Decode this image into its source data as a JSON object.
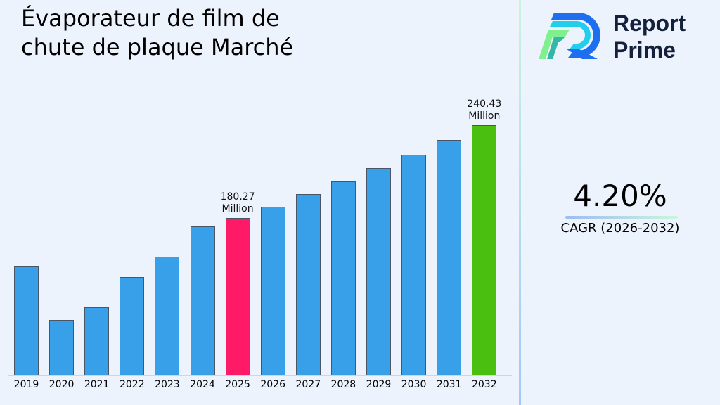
{
  "title": "Évaporateur de film de chute de plaque Marché",
  "brand": {
    "line1": "Report",
    "line2": "Prime"
  },
  "cagr": {
    "value": "4.20%",
    "label": "CAGR (2026-2032)"
  },
  "colors": {
    "default_bar": "#38a0e8",
    "highlight_bar": "#fe1a66",
    "final_bar": "#4bbf10"
  },
  "annotations": [
    {
      "year": "2025",
      "line1": "180.27",
      "line2": "Million"
    },
    {
      "year": "2032",
      "line1": "240.43",
      "line2": "Million"
    }
  ],
  "chart_data": {
    "type": "bar",
    "title": "Évaporateur de film de chute de plaque Marché",
    "xlabel": "",
    "ylabel": "",
    "unit": "Million",
    "categories": [
      "2019",
      "2020",
      "2021",
      "2022",
      "2023",
      "2024",
      "2025",
      "2026",
      "2027",
      "2028",
      "2029",
      "2030",
      "2031",
      "2032"
    ],
    "values": [
      148.8,
      114.2,
      122.4,
      142.0,
      155.2,
      174.8,
      180.27,
      187.8,
      195.7,
      203.9,
      212.5,
      221.4,
      230.7,
      240.43
    ],
    "highlight": {
      "2025": "#fe1a66",
      "2032": "#4bbf10"
    },
    "data_labels": {
      "2025": "180.27 Million",
      "2032": "240.43 Million"
    },
    "cagr": "4.20%",
    "cagr_period": "2026-2032",
    "grid": false,
    "legend": null,
    "yaxis_visible": false
  }
}
